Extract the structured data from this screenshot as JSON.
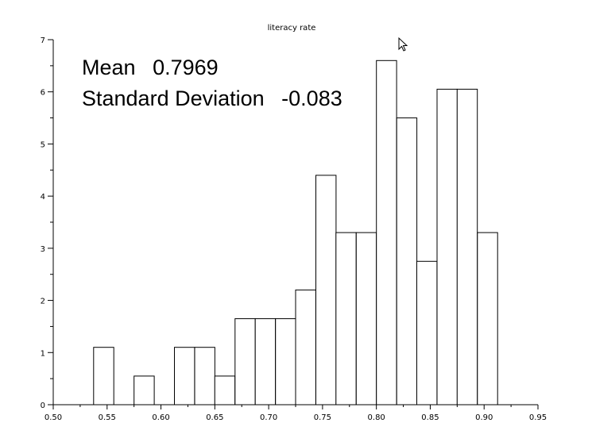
{
  "chart_data": {
    "type": "bar",
    "title": "literacy rate",
    "annotations": {
      "mean_label": "Mean",
      "mean_value": "0.7969",
      "std_label": "Standard Deviation",
      "std_value": "-0.083"
    },
    "xlim": [
      0.5,
      0.95
    ],
    "ylim": [
      0,
      7
    ],
    "x_ticks": [
      "0.50",
      "0.55",
      "0.60",
      "0.65",
      "0.70",
      "0.75",
      "0.80",
      "0.85",
      "0.90",
      "0.95"
    ],
    "y_ticks": [
      "0",
      "1",
      "2",
      "3",
      "4",
      "5",
      "6",
      "7"
    ],
    "bin_width": 0.01875,
    "bins": [
      {
        "x0": 0.5375,
        "value": 1.1
      },
      {
        "x0": 0.575,
        "value": 0.55
      },
      {
        "x0": 0.6125,
        "value": 1.1
      },
      {
        "x0": 0.6313,
        "value": 1.1
      },
      {
        "x0": 0.65,
        "value": 0.55
      },
      {
        "x0": 0.6688,
        "value": 1.65
      },
      {
        "x0": 0.6875,
        "value": 1.65
      },
      {
        "x0": 0.7063,
        "value": 1.65
      },
      {
        "x0": 0.725,
        "value": 2.2
      },
      {
        "x0": 0.7438,
        "value": 4.4
      },
      {
        "x0": 0.7625,
        "value": 3.3
      },
      {
        "x0": 0.7813,
        "value": 3.3
      },
      {
        "x0": 0.8,
        "value": 6.6
      },
      {
        "x0": 0.8188,
        "value": 5.5
      },
      {
        "x0": 0.8375,
        "value": 2.75
      },
      {
        "x0": 0.8563,
        "value": 6.05
      },
      {
        "x0": 0.875,
        "value": 6.05
      },
      {
        "x0": 0.8938,
        "value": 3.3
      }
    ],
    "grid": false,
    "bar_color": "#ffffff",
    "edge_color": "#000000"
  },
  "cursor": {
    "icon": "arrow-cursor-icon"
  }
}
